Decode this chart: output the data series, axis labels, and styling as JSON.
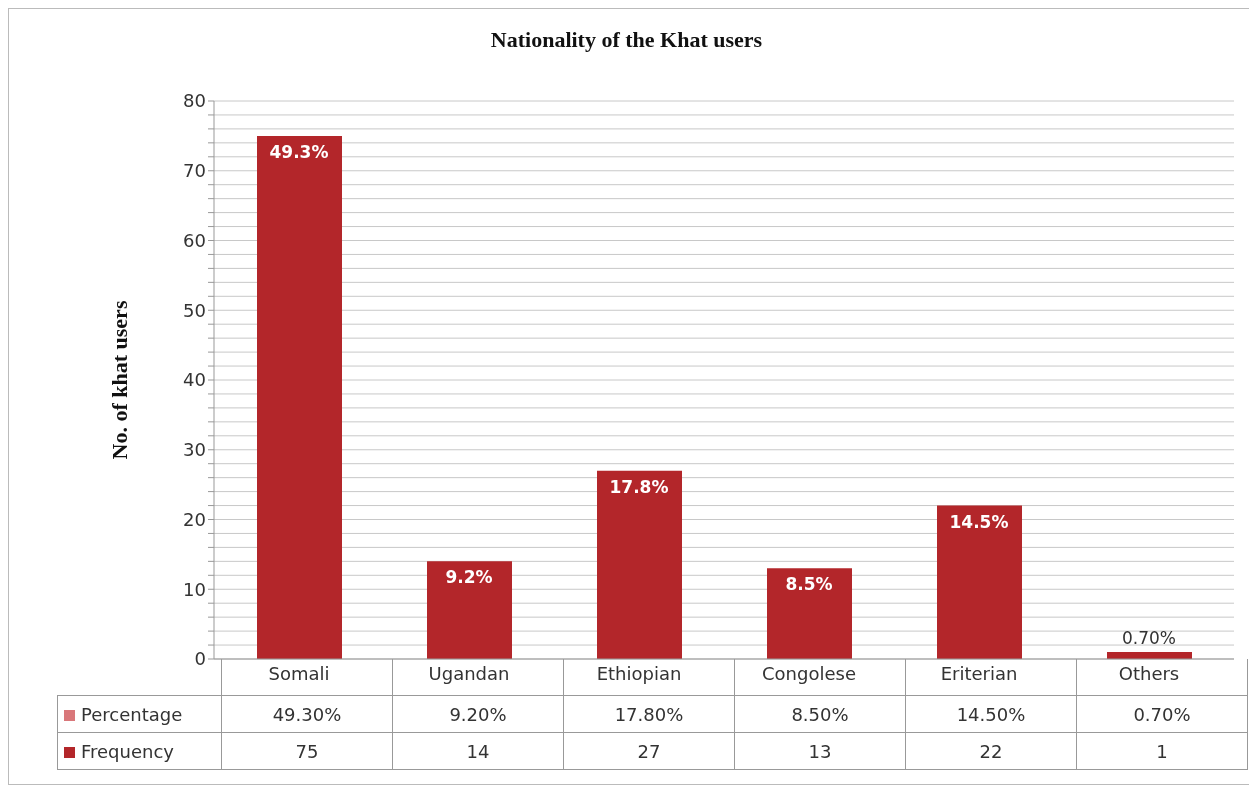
{
  "chart_data": {
    "type": "bar",
    "title": "Nationality of the Khat users",
    "ylabel": "No. of khat users",
    "categories": [
      "Somali",
      "Ugandan",
      "Ethiopian",
      "Congolese",
      "Eriterian",
      "Others"
    ],
    "series": [
      {
        "name": "Percentage",
        "color": "#d9777a",
        "values": [
          null,
          null,
          null,
          null,
          null,
          null
        ],
        "value_labels": [
          "49.30%",
          "9.20%",
          "17.80%",
          "8.50%",
          "14.50%",
          "0.70%"
        ]
      },
      {
        "name": "Frequency",
        "color": "#b3262a",
        "values": [
          75,
          14,
          27,
          13,
          22,
          1
        ],
        "value_labels": [
          "75",
          "14",
          "27",
          "13",
          "22",
          "1"
        ]
      }
    ],
    "annotations": [
      {
        "text": "49.3%",
        "x": "Somali",
        "y": 75
      },
      {
        "text": "9.2%",
        "x": "Ugandan",
        "y": 14
      },
      {
        "text": "17.8%",
        "x": "Ethiopian",
        "y": 27
      },
      {
        "text": "8.5%",
        "x": "Congolese",
        "y": 13
      },
      {
        "text": "14.5%",
        "x": "Eriterian",
        "y": 22
      },
      {
        "text": "0.70%",
        "x": "Others",
        "y": 1
      }
    ],
    "ylim": [
      0,
      80
    ],
    "yticks": [
      0,
      {
        "value": 2,
        "label": null
      },
      {
        "value": 4,
        "label": null
      },
      {
        "value": 6,
        "label": null
      },
      {
        "value": 8,
        "label": null
      },
      10,
      {
        "value": 12,
        "label": null
      },
      {
        "value": 14,
        "label": null
      },
      {
        "value": 16,
        "label": null
      },
      {
        "value": 18,
        "label": null
      },
      20,
      {
        "value": 22,
        "label": null
      },
      {
        "value": 24,
        "label": null
      },
      {
        "value": 26,
        "label": null
      },
      {
        "value": 28,
        "label": null
      },
      30,
      {
        "value": 32,
        "label": null
      },
      {
        "value": 34,
        "label": null
      },
      {
        "value": 36,
        "label": null
      },
      {
        "value": 38,
        "label": null
      },
      40,
      {
        "value": 42,
        "label": null
      },
      {
        "value": 44,
        "label": null
      },
      {
        "value": 46,
        "label": null
      },
      {
        "value": 48,
        "label": null
      },
      50,
      {
        "value": 52,
        "label": null
      },
      {
        "value": 54,
        "label": null
      },
      {
        "value": 56,
        "label": null
      },
      {
        "value": 58,
        "label": null
      },
      60,
      {
        "value": 62,
        "label": null
      },
      {
        "value": 64,
        "label": null
      },
      {
        "value": 66,
        "label": null
      },
      {
        "value": 68,
        "label": null
      },
      70,
      {
        "value": 72,
        "label": null
      },
      {
        "value": 74,
        "label": null
      },
      {
        "value": 76,
        "label": null
      },
      {
        "value": 78,
        "label": null
      },
      80
    ],
    "grid": "y",
    "legend": "bottom left"
  }
}
